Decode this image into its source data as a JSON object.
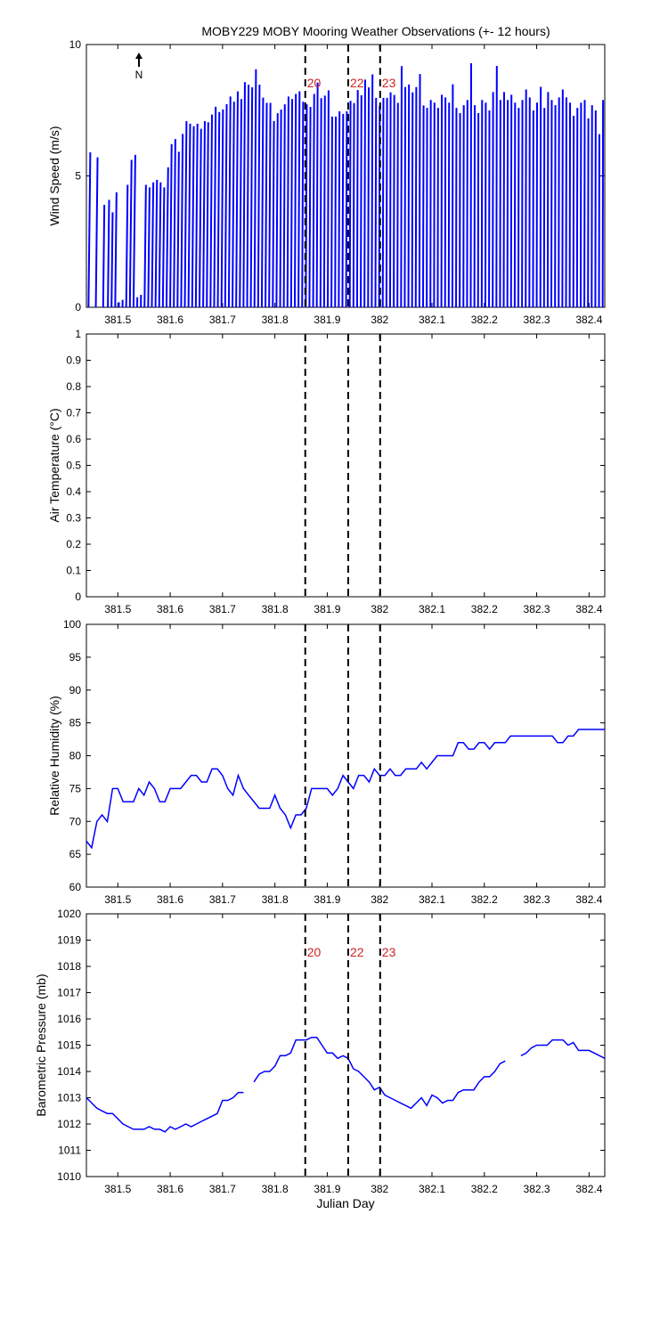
{
  "title": "MOBY229 MOBY Mooring Weather Observations (+- 12 hours)",
  "colors": {
    "series": "#0000ff",
    "marker_label": "#cc2222",
    "axis": "#000000"
  },
  "north_label": "N",
  "north_icon": "north-arrow-icon",
  "x_tick_labels": [
    "381.5",
    "381.6",
    "381.7",
    "381.8",
    "381.9",
    "382",
    "382.1",
    "382.2",
    "382.3",
    "382.4"
  ],
  "markers": [
    {
      "x": 381.858,
      "label": "20"
    },
    {
      "x": 381.94,
      "label": "22"
    },
    {
      "x": 382.001,
      "label": "23"
    }
  ],
  "chart_data": [
    {
      "type": "line",
      "name": "wind",
      "ylabel": "Wind Speed (m/s)",
      "xlabel": "",
      "xlim": [
        381.44,
        382.43
      ],
      "ylim": [
        0,
        10
      ],
      "yticks": [
        "0",
        "5",
        "10"
      ],
      "show_marker_labels": true,
      "show_north": true,
      "wind_speed": {
        "x": [
          381.444,
          381.458,
          381.472,
          381.481,
          381.488,
          381.495,
          381.502,
          381.509,
          381.516,
          381.523,
          381.53,
          381.537,
          381.544,
          381.551,
          381.558,
          381.565,
          381.572,
          381.579,
          381.586,
          381.593,
          381.6,
          381.607,
          381.614,
          381.621,
          381.628,
          381.635,
          381.642,
          381.649,
          381.656,
          381.663,
          381.67,
          381.677,
          381.684,
          381.691,
          381.698,
          381.705,
          381.712,
          381.719,
          381.726,
          381.733,
          381.74,
          381.747,
          381.754,
          381.761,
          381.768,
          381.775,
          381.782,
          381.789,
          381.796,
          381.803,
          381.81,
          381.817,
          381.824,
          381.831,
          381.838,
          381.845,
          381.852,
          381.859,
          381.866,
          381.873,
          381.88,
          381.887,
          381.894,
          381.901,
          381.908,
          381.915,
          381.922,
          381.929,
          381.936,
          381.943,
          381.95,
          381.957,
          381.964,
          381.971,
          381.978,
          381.985,
          381.992,
          381.999,
          382.006,
          382.013,
          382.02,
          382.027,
          382.034,
          382.041,
          382.048,
          382.055,
          382.062,
          382.069,
          382.076,
          382.083,
          382.09,
          382.097,
          382.104,
          382.111,
          382.118,
          382.125,
          382.132,
          382.139,
          382.146,
          382.153,
          382.16,
          382.167,
          382.174,
          382.181,
          382.188,
          382.195,
          382.202,
          382.209,
          382.216,
          382.223,
          382.23,
          382.237,
          382.244,
          382.251,
          382.258,
          382.265,
          382.272,
          382.279,
          382.286,
          382.293,
          382.3,
          382.307,
          382.314,
          382.321,
          382.328,
          382.335,
          382.342,
          382.349,
          382.356,
          382.363,
          382.37,
          382.377,
          382.384,
          382.391,
          382.398,
          382.405,
          382.412,
          382.419,
          382.426
        ],
        "speed": [
          6.2,
          6.0,
          4.1,
          4.3,
          3.8,
          4.6,
          0.2,
          0.3,
          4.9,
          5.9,
          6.1,
          0.4,
          0.5,
          4.9,
          4.8,
          5.0,
          5.1,
          5.0,
          4.8,
          5.6,
          6.4,
          6.6,
          6.1,
          6.8,
          7.3,
          7.2,
          7.1,
          7.2,
          7.0,
          7.3,
          7.2,
          7.5,
          7.8,
          7.6,
          7.7,
          7.9,
          8.2,
          8.0,
          8.4,
          8.1,
          8.7,
          8.6,
          8.5,
          9.2,
          8.6,
          8.1,
          7.9,
          7.9,
          7.2,
          7.5,
          7.6,
          7.8,
          8.1,
          8.0,
          8.2,
          8.3,
          7.9,
          7.8,
          7.7,
          8.2,
          8.6,
          8.0,
          8.1,
          8.3,
          7.3,
          7.3,
          7.5,
          7.4,
          7.5,
          7.9,
          7.8,
          8.3,
          8.1,
          8.7,
          8.4,
          8.9,
          8.0,
          7.7,
          8.0,
          8.0,
          8.2,
          8.1,
          7.8,
          9.2,
          8.4,
          8.5,
          8.2,
          8.4,
          8.9,
          7.7,
          7.6,
          7.9,
          7.8,
          7.6,
          8.1,
          8.0,
          7.8,
          8.5,
          7.6,
          7.4,
          7.7,
          7.9,
          9.3,
          7.7,
          7.4,
          7.9,
          7.8,
          7.5,
          8.2,
          9.2,
          7.9,
          8.2,
          7.9,
          8.1,
          7.8,
          7.6,
          7.9,
          8.3,
          8.0,
          7.5,
          7.8,
          8.4,
          7.6,
          8.2,
          7.9,
          7.7,
          8.0,
          8.3,
          8.0,
          7.8,
          7.3,
          7.6,
          7.8,
          7.9,
          7.2,
          7.7,
          7.5,
          6.6,
          7.9,
          6.6,
          6.8,
          7.0
        ],
        "direction_deg": [
          18,
          18,
          18,
          18,
          18,
          18,
          18,
          18,
          18,
          18,
          18,
          18,
          18,
          18,
          18,
          18,
          18,
          18,
          18,
          18,
          14,
          14,
          14,
          14,
          14,
          14,
          14,
          14,
          14,
          14,
          12,
          12,
          12,
          12,
          12,
          12,
          12,
          12,
          12,
          12,
          10,
          10,
          10,
          10,
          10,
          10,
          10,
          10,
          10,
          10,
          8,
          8,
          8,
          8,
          8,
          8,
          8,
          8,
          8,
          8,
          6,
          6,
          6,
          6,
          6,
          6,
          6,
          6,
          6,
          6,
          5,
          5,
          5,
          5,
          5,
          5,
          5,
          5,
          5,
          5,
          4,
          4,
          4,
          4,
          4,
          4,
          4,
          4,
          4,
          4,
          3,
          3,
          3,
          3,
          3,
          3,
          3,
          3,
          3,
          3,
          3,
          3,
          3,
          3,
          3,
          3,
          3,
          3,
          3,
          3,
          3,
          3,
          3,
          3,
          3,
          3,
          3,
          3,
          3,
          3,
          3,
          3,
          3,
          3,
          3,
          3,
          3,
          3,
          3,
          3,
          3,
          3,
          3,
          3,
          3,
          3,
          3,
          3,
          3,
          3
        ]
      }
    },
    {
      "type": "line",
      "name": "airtemp",
      "ylabel": "Air Temperature (°C)",
      "xlabel": "",
      "xlim": [
        381.44,
        382.43
      ],
      "ylim": [
        0,
        1
      ],
      "yticks": [
        "0",
        "0.1",
        "0.2",
        "0.3",
        "0.4",
        "0.5",
        "0.6",
        "0.7",
        "0.8",
        "0.9",
        "1"
      ],
      "show_marker_labels": false,
      "series": []
    },
    {
      "type": "line",
      "name": "humidity",
      "ylabel": "Relative Humidity (%)",
      "xlabel": "",
      "xlim": [
        381.44,
        382.43
      ],
      "ylim": [
        60,
        100
      ],
      "yticks": [
        "60",
        "65",
        "70",
        "75",
        "80",
        "85",
        "90",
        "95",
        "100"
      ],
      "show_marker_labels": false,
      "series": [
        {
          "x": [
            381.44,
            381.45,
            381.46,
            381.47,
            381.48,
            381.49,
            381.5,
            381.51,
            381.52,
            381.53,
            381.54,
            381.55,
            381.56,
            381.57,
            381.58,
            381.59,
            381.6,
            381.61,
            381.62,
            381.63,
            381.64,
            381.65,
            381.66,
            381.67,
            381.68,
            381.69,
            381.7,
            381.71,
            381.72,
            381.73,
            381.74,
            381.75,
            381.76,
            381.77,
            381.78,
            381.79,
            381.8,
            381.81,
            381.82,
            381.83,
            381.84,
            381.85,
            381.86,
            381.87,
            381.88,
            381.89,
            381.9,
            381.91,
            381.92,
            381.93,
            381.94,
            381.95,
            381.96,
            381.97,
            381.98,
            381.99,
            382.0,
            382.01,
            382.02,
            382.03,
            382.04,
            382.05,
            382.06,
            382.07,
            382.08,
            382.09,
            382.1,
            382.11,
            382.12,
            382.13,
            382.14,
            382.15,
            382.16,
            382.17,
            382.18,
            382.19,
            382.2,
            382.21,
            382.22,
            382.23,
            382.24,
            382.25,
            382.26,
            382.27,
            382.28,
            382.29,
            382.3,
            382.31,
            382.32,
            382.33,
            382.34,
            382.35,
            382.36,
            382.37,
            382.38,
            382.39,
            382.4,
            382.41,
            382.42,
            382.43
          ],
          "y": [
            67,
            66,
            70,
            71,
            70,
            75,
            75,
            73,
            73,
            73,
            75,
            74,
            76,
            75,
            73,
            73,
            75,
            75,
            75,
            76,
            77,
            77,
            76,
            76,
            78,
            78,
            77,
            75,
            74,
            77,
            75,
            74,
            73,
            72,
            72,
            72,
            74,
            72,
            71,
            69,
            71,
            71,
            72,
            75,
            75,
            75,
            75,
            74,
            75,
            77,
            76,
            75,
            77,
            77,
            76,
            78,
            77,
            77,
            78,
            77,
            77,
            78,
            78,
            78,
            79,
            78,
            79,
            80,
            80,
            80,
            80,
            82,
            82,
            81,
            81,
            82,
            82,
            81,
            82,
            82,
            82,
            83,
            83,
            83,
            83,
            83,
            83,
            83,
            83,
            83,
            82,
            82,
            83,
            83,
            84,
            84,
            84,
            84,
            84,
            84
          ]
        }
      ]
    },
    {
      "type": "line",
      "name": "pressure",
      "ylabel": "Barometric Pressure (mb)",
      "xlabel": "Julian Day",
      "xlim": [
        381.44,
        382.43
      ],
      "ylim": [
        1010,
        1020
      ],
      "yticks": [
        "1010",
        "1011",
        "1012",
        "1013",
        "1014",
        "1015",
        "1016",
        "1017",
        "1018",
        "1019",
        "1020"
      ],
      "show_marker_labels": true,
      "series": [
        {
          "x": [
            381.44,
            381.45,
            381.46,
            381.47,
            381.48,
            381.49,
            381.5,
            381.51,
            381.52,
            381.53,
            381.54,
            381.55,
            381.56,
            381.57,
            381.58,
            381.59,
            381.6,
            381.61,
            381.62,
            381.63,
            381.64,
            381.65,
            381.66,
            381.67,
            381.68,
            381.69,
            381.7,
            381.71,
            381.72,
            381.73,
            381.74
          ],
          "y": [
            1013.0,
            1012.8,
            1012.6,
            1012.5,
            1012.4,
            1012.4,
            1012.2,
            1012.0,
            1011.9,
            1011.8,
            1011.8,
            1011.8,
            1011.9,
            1011.8,
            1011.8,
            1011.7,
            1011.9,
            1011.8,
            1011.9,
            1012.0,
            1011.9,
            1012.0,
            1012.1,
            1012.2,
            1012.3,
            1012.4,
            1012.9,
            1012.9,
            1013.0,
            1013.2,
            1013.2
          ]
        },
        {
          "x": [
            381.76,
            381.77,
            381.78,
            381.79,
            381.8,
            381.81,
            381.82,
            381.83,
            381.84,
            381.85,
            381.86,
            381.87,
            381.88,
            381.89,
            381.9,
            381.91,
            381.92,
            381.93,
            381.94,
            381.95,
            381.96,
            381.97,
            381.98,
            381.99,
            382.0,
            382.01,
            382.02,
            382.03,
            382.04,
            382.05,
            382.06,
            382.07,
            382.08,
            382.09,
            382.1,
            382.11,
            382.12,
            382.13,
            382.14,
            382.15,
            382.16,
            382.17,
            382.18,
            382.19,
            382.2,
            382.21,
            382.22,
            382.23,
            382.24
          ],
          "y": [
            1013.6,
            1013.9,
            1014.0,
            1014.0,
            1014.2,
            1014.6,
            1014.6,
            1014.7,
            1015.2,
            1015.2,
            1015.2,
            1015.3,
            1015.3,
            1015.0,
            1014.7,
            1014.7,
            1014.5,
            1014.6,
            1014.5,
            1014.1,
            1014.0,
            1013.8,
            1013.6,
            1013.3,
            1013.4,
            1013.1,
            1013.0,
            1012.9,
            1012.8,
            1012.7,
            1012.6,
            1012.8,
            1013.0,
            1012.7,
            1013.1,
            1013.0,
            1012.8,
            1012.9,
            1012.9,
            1013.2,
            1013.3,
            1013.3,
            1013.3,
            1013.6,
            1013.8,
            1013.8,
            1014.0,
            1014.3,
            1014.4
          ]
        },
        {
          "x": [
            382.27,
            382.28,
            382.29,
            382.3,
            382.31,
            382.32,
            382.33,
            382.34,
            382.35,
            382.36,
            382.37,
            382.38,
            382.39,
            382.4,
            382.41,
            382.42,
            382.43
          ],
          "y": [
            1014.6,
            1014.7,
            1014.9,
            1015.0,
            1015.0,
            1015.0,
            1015.2,
            1015.2,
            1015.2,
            1015.0,
            1015.1,
            1014.8,
            1014.8,
            1014.8,
            1014.7,
            1014.6,
            1014.5
          ]
        }
      ]
    }
  ]
}
